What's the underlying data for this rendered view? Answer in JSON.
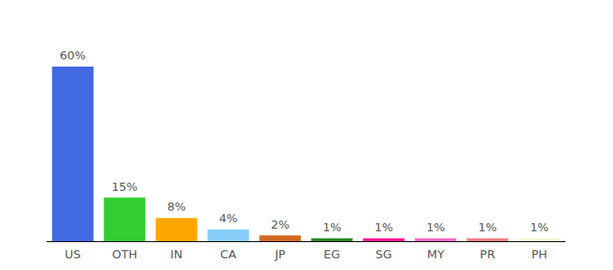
{
  "chart_data": {
    "type": "bar",
    "categories": [
      "US",
      "OTH",
      "IN",
      "CA",
      "JP",
      "EG",
      "SG",
      "MY",
      "PR",
      "PH"
    ],
    "values": [
      60,
      15,
      8,
      4,
      2,
      1,
      1,
      1,
      1,
      1
    ],
    "value_labels": [
      "60%",
      "15%",
      "8%",
      "4%",
      "2%",
      "1%",
      "1%",
      "1%",
      "1%",
      "1%"
    ],
    "colors": [
      "#4169e1",
      "#32cd32",
      "#ffa500",
      "#87cefa",
      "#d2691e",
      "#228b22",
      "#ff1493",
      "#f06dc8",
      "#f08080",
      "#fafad2"
    ],
    "ylim": [
      0,
      60
    ],
    "data_labels": true,
    "tick_labels": "x",
    "grid": false
  }
}
